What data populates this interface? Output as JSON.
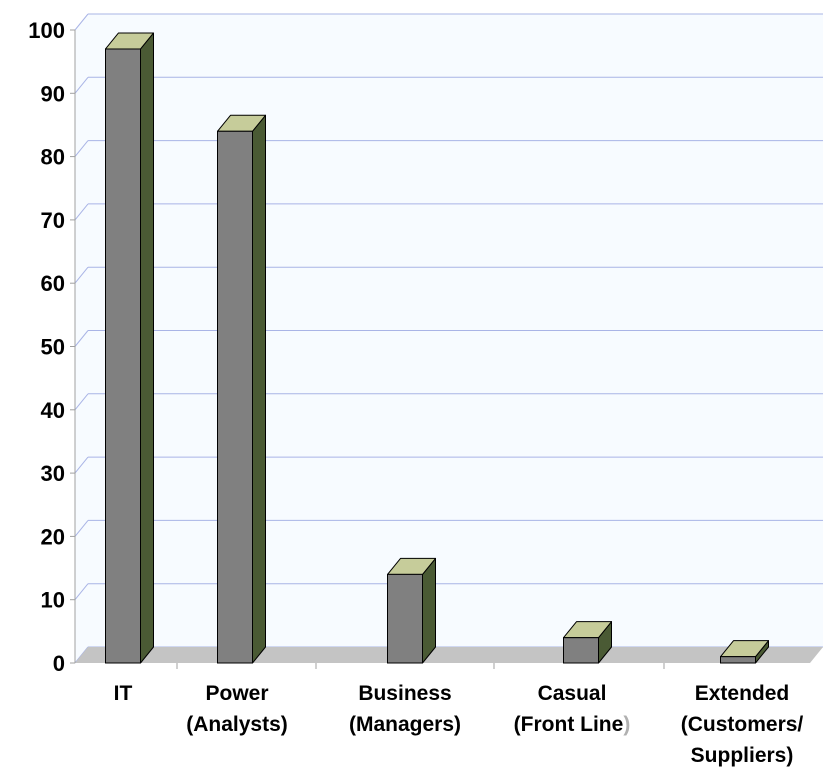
{
  "chart_data": {
    "type": "bar",
    "title": "",
    "xlabel": "",
    "ylabel": "",
    "categories": [
      {
        "lines": [
          "IT"
        ]
      },
      {
        "lines": [
          "Power",
          "(Analysts)"
        ]
      },
      {
        "lines": [
          "Business",
          "(Managers)"
        ]
      },
      {
        "lines": [
          "Casual",
          "(Front Line)"
        ]
      },
      {
        "lines": [
          "Extended",
          "(Customers/",
          "Suppliers)"
        ]
      }
    ],
    "values": [
      97,
      84,
      14,
      4,
      1
    ],
    "ylim": [
      0,
      100
    ],
    "yticks": [
      "0",
      "10",
      "20",
      "30",
      "40",
      "50",
      "60",
      "70",
      "80",
      "90",
      "100"
    ],
    "grid": true,
    "legend": "none",
    "three_d": true
  },
  "colors": {
    "background": "#ffffff",
    "plot_wall": "#f7fbff",
    "grid": "#a9b4e6",
    "floor": "#c4c4c4",
    "bar_front": "#808080",
    "bar_side": "#4a5a34",
    "bar_top": "#c6cc9a",
    "axis": "#a0a0a0"
  }
}
